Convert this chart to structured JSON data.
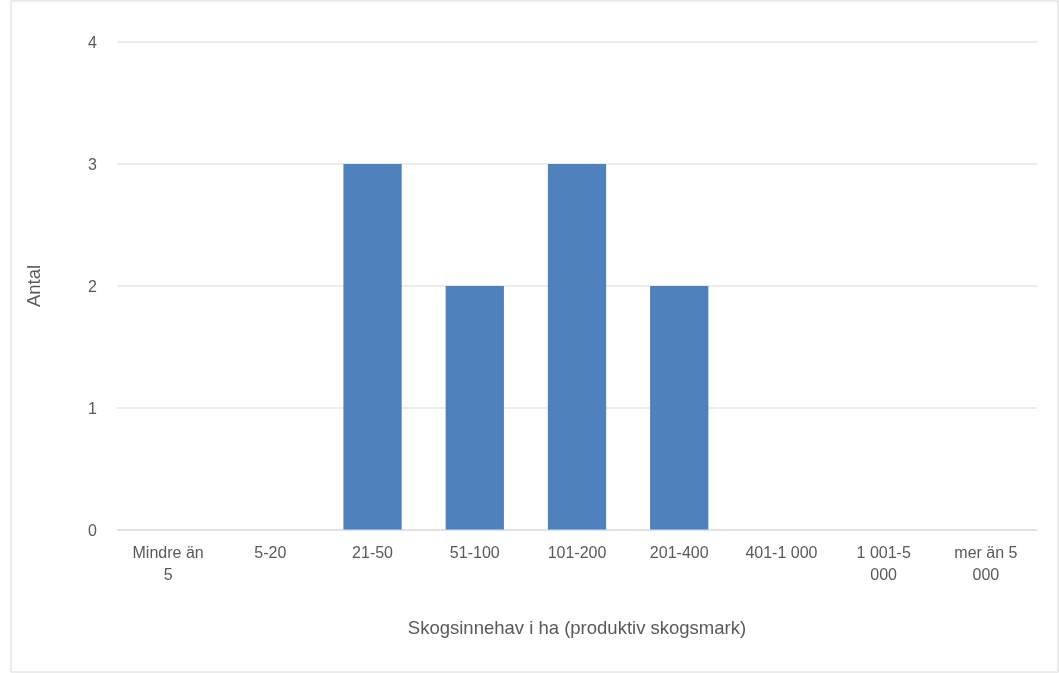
{
  "chart_data": {
    "type": "bar",
    "xlabel": "Skogsinnehav i ha (produktiv skogsmark)",
    "ylabel": "Antal",
    "categories": [
      "Mindre än 5",
      "5-20",
      "21-50",
      "51-100",
      "101-200",
      "201-400",
      "401-1 000",
      "1 001-5 000",
      "mer än 5 000"
    ],
    "values": [
      0,
      0,
      3,
      2,
      3,
      2,
      0,
      0,
      0
    ],
    "color": "#4f81bd",
    "ylim": [
      0,
      4
    ],
    "yticks": [
      0,
      1,
      2,
      3,
      4
    ],
    "grid": "y"
  }
}
